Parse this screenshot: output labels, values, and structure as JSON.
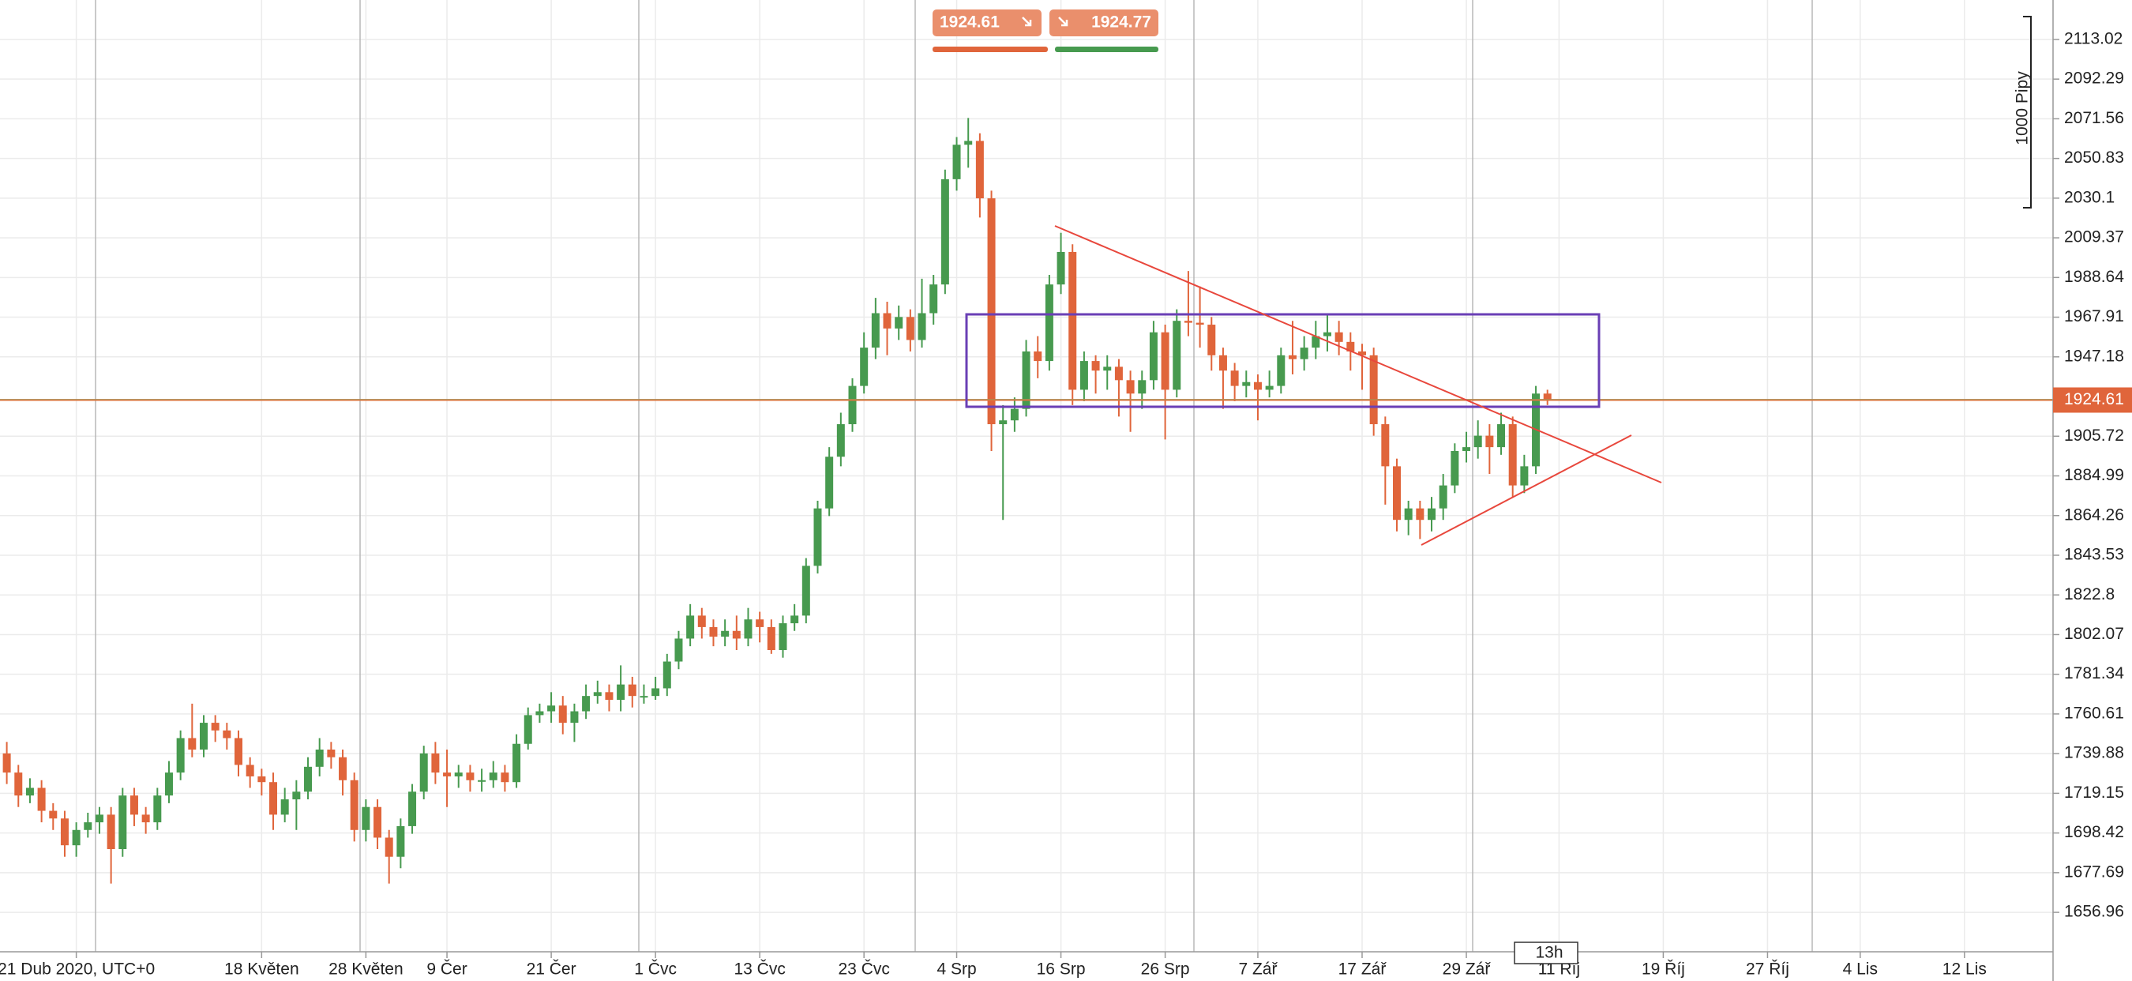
{
  "chart_data": {
    "type": "candlestick",
    "up_color": "#479a4f",
    "down_color": "#e0653b",
    "ylim": [
      1636.36,
      2133.62
    ],
    "yticks": [
      2113.02,
      2092.29,
      2071.56,
      2050.83,
      2030.1,
      2009.37,
      1988.64,
      1967.91,
      1947.18,
      1905.72,
      1884.99,
      1864.26,
      1843.53,
      1822.8,
      1802.07,
      1781.34,
      1760.61,
      1739.88,
      1719.15,
      1698.42,
      1677.69,
      1656.96
    ],
    "grid": true,
    "current_price": 1924.61,
    "bid": 1924.61,
    "ask": 1924.77,
    "scale_label": "1000 Pipy",
    "timer": "13h",
    "categories": [
      null,
      null,
      null,
      null,
      null,
      null,
      "21 Dub 2020, UTC+0",
      null,
      null,
      null,
      null,
      null,
      null,
      null,
      null,
      null,
      null,
      null,
      null,
      null,
      null,
      null,
      "18 Květen",
      null,
      null,
      null,
      null,
      null,
      null,
      null,
      null,
      "28 Květen",
      null,
      null,
      null,
      null,
      null,
      null,
      "9 Čer",
      null,
      null,
      null,
      null,
      null,
      null,
      null,
      null,
      "21 Čer",
      null,
      null,
      null,
      null,
      null,
      null,
      null,
      null,
      "1 Čvc",
      null,
      null,
      null,
      null,
      null,
      null,
      null,
      null,
      "13 Čvc",
      null,
      null,
      null,
      null,
      null,
      null,
      null,
      null,
      "23 Čvc",
      null,
      null,
      null,
      null,
      null,
      null,
      null,
      "4 Srp",
      null,
      null,
      null,
      null,
      null,
      null,
      null,
      null,
      "16 Srp",
      null,
      null,
      null,
      null,
      null,
      null,
      null,
      null,
      "26 Srp",
      null,
      null,
      null,
      null,
      null,
      null,
      null,
      "7 Zář",
      null,
      null,
      null,
      null,
      null,
      null,
      null,
      null,
      "17 Zář",
      null,
      null,
      null,
      null,
      null,
      null,
      null,
      null,
      "29 Zář",
      null,
      null,
      null,
      null,
      null,
      null,
      null,
      "11 Říj",
      null,
      null,
      null,
      null,
      null,
      null,
      null,
      null,
      "19 Říj",
      null,
      null,
      null,
      null,
      null,
      null,
      null,
      null,
      "27 Říj",
      null,
      null,
      null,
      null,
      null,
      null,
      null,
      "4 Lis",
      null,
      null,
      null,
      null,
      null,
      null,
      null,
      null,
      "12 Lis",
      null,
      null,
      null,
      null,
      null,
      null,
      null
    ],
    "open": [
      1740,
      1730,
      1718,
      1722,
      1710,
      1706,
      1692,
      1700,
      1704,
      1708,
      1690,
      1718,
      1708,
      1704,
      1718,
      1730,
      1748,
      1742,
      1756,
      1752,
      1748,
      1734,
      1728,
      1725,
      1708,
      1716,
      1720,
      1733,
      1742,
      1738,
      1726,
      1700,
      1712,
      1696,
      1686,
      1702,
      1720,
      1740,
      1730,
      1728,
      1730,
      1726,
      1726,
      1730,
      1725,
      1745,
      1760,
      1762,
      1765,
      1756,
      1762,
      1770,
      1772,
      1768,
      1776,
      1770,
      1770,
      1774,
      1788,
      1800,
      1812,
      1806,
      1801,
      1804,
      1800,
      1810,
      1806,
      1794,
      1808,
      1812,
      1838,
      1868,
      1895,
      1912,
      1932,
      1952,
      1970,
      1962,
      1968,
      1956,
      1970,
      1985,
      2040,
      2058,
      2060,
      2030,
      1912,
      1914,
      1920,
      1950,
      1945,
      1985,
      2002,
      1930,
      1945,
      1940,
      1942,
      1935,
      1928,
      1935,
      1960,
      1930,
      1966,
      1965,
      1964,
      1948,
      1940,
      1932,
      1934,
      1930,
      1932,
      1948,
      1946,
      1952,
      1958,
      1960,
      1955,
      1950,
      1948,
      1912,
      1890,
      1862,
      1868,
      1862,
      1868,
      1880,
      1898,
      1900,
      1906,
      1900,
      1912,
      1880,
      1890,
      1928,
      null,
      null,
      null,
      null,
      null,
      null,
      null,
      null,
      null,
      null,
      null,
      null,
      null,
      null,
      null,
      null,
      null,
      null,
      null,
      null,
      null,
      null,
      null,
      null,
      null,
      null,
      null,
      null,
      null,
      null,
      null,
      null,
      null,
      null,
      null,
      null,
      null,
      null,
      null,
      null,
      null,
      null,
      null
    ],
    "high": [
      1746,
      1734,
      1727,
      1726,
      1714,
      1710,
      1704,
      1709,
      1712,
      1712,
      1722,
      1722,
      1712,
      1722,
      1736,
      1752,
      1766,
      1760,
      1760,
      1756,
      1752,
      1738,
      1732,
      1730,
      1722,
      1726,
      1738,
      1748,
      1746,
      1742,
      1730,
      1716,
      1716,
      1700,
      1706,
      1724,
      1744,
      1746,
      1742,
      1734,
      1734,
      1732,
      1736,
      1734,
      1750,
      1764,
      1766,
      1772,
      1770,
      1766,
      1776,
      1778,
      1776,
      1786,
      1780,
      1776,
      1780,
      1792,
      1804,
      1818,
      1816,
      1810,
      1810,
      1812,
      1816,
      1814,
      1810,
      1812,
      1818,
      1842,
      1872,
      1900,
      1918,
      1936,
      1960,
      1978,
      1976,
      1974,
      1972,
      1988,
      1990,
      2045,
      2062,
      2072,
      2064,
      2034,
      1922,
      1926,
      1956,
      1958,
      1990,
      2012,
      2006,
      1950,
      1948,
      1948,
      1946,
      1940,
      1940,
      1966,
      1964,
      1972,
      1992,
      1984,
      1968,
      1952,
      1944,
      1940,
      1938,
      1940,
      1952,
      1966,
      1958,
      1966,
      1970,
      1966,
      1960,
      1954,
      1952,
      1916,
      1894,
      1872,
      1872,
      1874,
      1886,
      1902,
      1908,
      1914,
      1912,
      1918,
      1916,
      1896,
      1932,
      1930,
      null,
      null,
      null,
      null,
      null,
      null,
      null,
      null,
      null,
      null,
      null,
      null,
      null,
      null,
      null,
      null,
      null,
      null,
      null,
      null,
      null,
      null,
      null,
      null,
      null,
      null,
      null,
      null,
      null,
      null,
      null,
      null,
      null,
      null,
      null,
      null,
      null,
      null,
      null,
      null,
      null,
      null,
      null
    ],
    "low": [
      1724,
      1712,
      1714,
      1704,
      1700,
      1686,
      1686,
      1696,
      1698,
      1672,
      1686,
      1702,
      1698,
      1700,
      1714,
      1726,
      1738,
      1738,
      1746,
      1742,
      1728,
      1722,
      1718,
      1700,
      1704,
      1700,
      1716,
      1728,
      1732,
      1718,
      1694,
      1694,
      1690,
      1672,
      1680,
      1698,
      1716,
      1724,
      1712,
      1722,
      1720,
      1720,
      1722,
      1720,
      1722,
      1742,
      1756,
      1756,
      1750,
      1746,
      1758,
      1766,
      1762,
      1762,
      1764,
      1766,
      1768,
      1770,
      1784,
      1796,
      1800,
      1796,
      1796,
      1794,
      1796,
      1798,
      1792,
      1790,
      1804,
      1808,
      1834,
      1864,
      1890,
      1908,
      1928,
      1946,
      1948,
      1956,
      1950,
      1952,
      1964,
      1980,
      2034,
      2046,
      2020,
      1898,
      1862,
      1908,
      1916,
      1936,
      1940,
      1980,
      1922,
      1924,
      1928,
      1930,
      1916,
      1908,
      1920,
      1930,
      1904,
      1926,
      1958,
      1952,
      1940,
      1920,
      1924,
      1926,
      1914,
      1926,
      1928,
      1938,
      1940,
      1946,
      1950,
      1948,
      1940,
      1930,
      1906,
      1870,
      1856,
      1854,
      1852,
      1856,
      1862,
      1876,
      1892,
      1894,
      1886,
      1896,
      1874,
      1876,
      1886,
      1922,
      null,
      null,
      null,
      null,
      null,
      null,
      null,
      null,
      null,
      null,
      null,
      null,
      null,
      null,
      null,
      null,
      null,
      null,
      null,
      null,
      null,
      null,
      null,
      null,
      null,
      null,
      null,
      null,
      null,
      null,
      null,
      null,
      null,
      null,
      null,
      null,
      null,
      null,
      null,
      null,
      null,
      null,
      null
    ],
    "close": [
      1730,
      1718,
      1722,
      1710,
      1706,
      1692,
      1700,
      1704,
      1708,
      1690,
      1718,
      1708,
      1704,
      1718,
      1730,
      1748,
      1742,
      1756,
      1752,
      1748,
      1734,
      1728,
      1725,
      1708,
      1716,
      1720,
      1733,
      1742,
      1738,
      1726,
      1700,
      1712,
      1696,
      1686,
      1702,
      1720,
      1740,
      1730,
      1728,
      1730,
      1726,
      1726,
      1730,
      1725,
      1745,
      1760,
      1762,
      1765,
      1756,
      1762,
      1770,
      1772,
      1768,
      1776,
      1770,
      1770,
      1774,
      1788,
      1800,
      1812,
      1806,
      1801,
      1804,
      1800,
      1810,
      1806,
      1794,
      1808,
      1812,
      1838,
      1868,
      1895,
      1912,
      1932,
      1952,
      1970,
      1962,
      1968,
      1956,
      1970,
      1985,
      2040,
      2058,
      2060,
      2030,
      1912,
      1914,
      1920,
      1950,
      1945,
      1985,
      2002,
      1930,
      1945,
      1940,
      1942,
      1935,
      1928,
      1935,
      1960,
      1930,
      1966,
      1965,
      1964,
      1948,
      1940,
      1932,
      1934,
      1930,
      1932,
      1948,
      1946,
      1952,
      1958,
      1960,
      1955,
      1950,
      1948,
      1912,
      1890,
      1862,
      1868,
      1862,
      1868,
      1880,
      1898,
      1900,
      1906,
      1900,
      1912,
      1880,
      1890,
      1928,
      1924.61,
      null,
      null,
      null,
      null,
      null,
      null,
      null,
      null,
      null,
      null,
      null,
      null,
      null,
      null,
      null,
      null,
      null,
      null,
      null,
      null,
      null,
      null,
      null,
      null,
      null,
      null,
      null,
      null,
      null,
      null,
      null,
      null,
      null,
      null,
      null,
      null,
      null,
      null,
      null,
      null,
      null,
      null,
      null
    ]
  }
}
